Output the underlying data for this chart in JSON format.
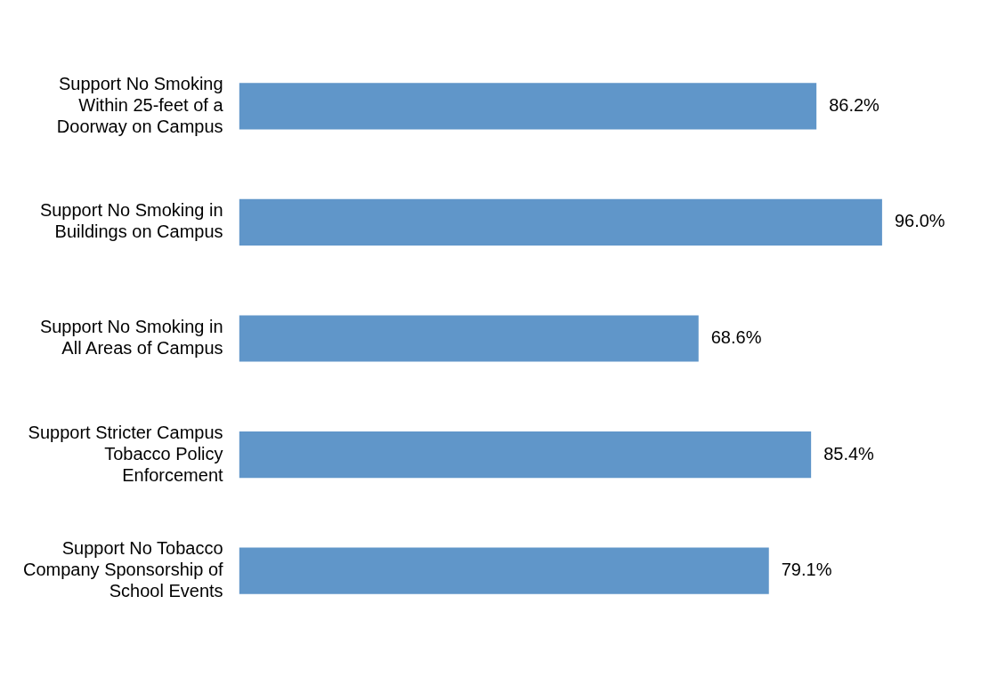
{
  "chart_data": {
    "type": "bar",
    "orientation": "horizontal",
    "categories": [
      "Support No Smoking Within 25-feet of a Doorway on Campus",
      "Support No Smoking in Buildings on Campus",
      "Support No Smoking in All Areas of Campus",
      "Support Stricter Campus Tobacco Policy Enforcement",
      "Support No Tobacco Company Sponsorship of School Events"
    ],
    "values": [
      86.2,
      96.0,
      68.6,
      85.4,
      79.1
    ],
    "value_labels": [
      "86.2%",
      "96.0%",
      "68.6%",
      "85.4%",
      "79.1%"
    ],
    "color": "#6096c9",
    "tick_labels": "y"
  }
}
